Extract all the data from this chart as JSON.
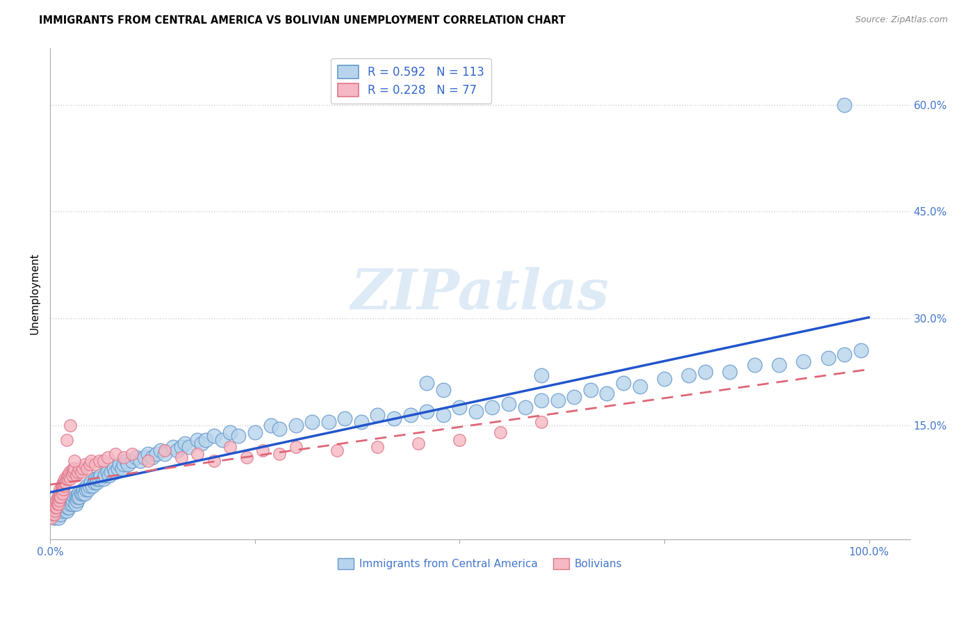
{
  "title": "IMMIGRANTS FROM CENTRAL AMERICA VS BOLIVIAN UNEMPLOYMENT CORRELATION CHART",
  "source": "Source: ZipAtlas.com",
  "ylabel": "Unemployment",
  "xlim": [
    0.0,
    1.05
  ],
  "ylim": [
    -0.01,
    0.68
  ],
  "ytick_vals": [
    0.15,
    0.3,
    0.45,
    0.6
  ],
  "ytick_labels": [
    "15.0%",
    "30.0%",
    "45.0%",
    "60.0%"
  ],
  "xtick_vals": [
    0.0,
    1.0
  ],
  "xtick_labels": [
    "0.0%",
    "100.0%"
  ],
  "blue_face": "#b8d4ec",
  "blue_edge": "#6699cc",
  "pink_face": "#f5b8c4",
  "pink_edge": "#dd7788",
  "line_blue_color": "#2255cc",
  "line_pink_color": "#dd6677",
  "grid_color": "#cccccc",
  "watermark": "ZIPatlas",
  "watermark_color": "#c8ddf0",
  "legend_label1": "Immigrants from Central America",
  "legend_label2": "Bolivians",
  "legend_r1": "R = 0.592",
  "legend_n1": "N = 113",
  "legend_r2": "R = 0.228",
  "legend_n2": "N = 77",
  "blue_x": [
    0.005,
    0.007,
    0.009,
    0.01,
    0.012,
    0.013,
    0.015,
    0.016,
    0.018,
    0.02,
    0.021,
    0.022,
    0.023,
    0.025,
    0.026,
    0.027,
    0.028,
    0.03,
    0.031,
    0.032,
    0.033,
    0.034,
    0.035,
    0.036,
    0.038,
    0.04,
    0.041,
    0.042,
    0.044,
    0.045,
    0.047,
    0.048,
    0.05,
    0.052,
    0.054,
    0.055,
    0.057,
    0.058,
    0.06,
    0.062,
    0.065,
    0.067,
    0.07,
    0.072,
    0.075,
    0.078,
    0.08,
    0.083,
    0.085,
    0.088,
    0.09,
    0.093,
    0.095,
    0.1,
    0.105,
    0.11,
    0.115,
    0.12,
    0.125,
    0.13,
    0.135,
    0.14,
    0.15,
    0.155,
    0.16,
    0.165,
    0.17,
    0.18,
    0.185,
    0.19,
    0.2,
    0.21,
    0.22,
    0.23,
    0.25,
    0.27,
    0.28,
    0.3,
    0.32,
    0.34,
    0.36,
    0.38,
    0.4,
    0.42,
    0.44,
    0.46,
    0.48,
    0.5,
    0.52,
    0.54,
    0.56,
    0.58,
    0.6,
    0.62,
    0.64,
    0.66,
    0.68,
    0.7,
    0.72,
    0.75,
    0.78,
    0.8,
    0.83,
    0.86,
    0.89,
    0.92,
    0.95,
    0.97,
    0.99,
    0.46,
    0.48,
    0.6,
    0.97
  ],
  "blue_y": [
    0.02,
    0.025,
    0.03,
    0.02,
    0.03,
    0.025,
    0.035,
    0.03,
    0.04,
    0.03,
    0.035,
    0.04,
    0.035,
    0.04,
    0.045,
    0.04,
    0.045,
    0.05,
    0.04,
    0.05,
    0.045,
    0.05,
    0.055,
    0.05,
    0.055,
    0.055,
    0.06,
    0.055,
    0.06,
    0.065,
    0.06,
    0.065,
    0.07,
    0.065,
    0.07,
    0.075,
    0.07,
    0.075,
    0.075,
    0.08,
    0.075,
    0.08,
    0.085,
    0.08,
    0.085,
    0.09,
    0.085,
    0.09,
    0.095,
    0.09,
    0.095,
    0.1,
    0.095,
    0.1,
    0.105,
    0.1,
    0.105,
    0.11,
    0.105,
    0.11,
    0.115,
    0.11,
    0.12,
    0.115,
    0.12,
    0.125,
    0.12,
    0.13,
    0.125,
    0.13,
    0.135,
    0.13,
    0.14,
    0.135,
    0.14,
    0.15,
    0.145,
    0.15,
    0.155,
    0.155,
    0.16,
    0.155,
    0.165,
    0.16,
    0.165,
    0.17,
    0.165,
    0.175,
    0.17,
    0.175,
    0.18,
    0.175,
    0.185,
    0.185,
    0.19,
    0.2,
    0.195,
    0.21,
    0.205,
    0.215,
    0.22,
    0.225,
    0.225,
    0.235,
    0.235,
    0.24,
    0.245,
    0.25,
    0.255,
    0.21,
    0.2,
    0.22,
    0.6
  ],
  "pink_x": [
    0.002,
    0.003,
    0.004,
    0.005,
    0.005,
    0.006,
    0.006,
    0.007,
    0.007,
    0.008,
    0.008,
    0.009,
    0.009,
    0.01,
    0.01,
    0.011,
    0.011,
    0.012,
    0.012,
    0.013,
    0.013,
    0.014,
    0.014,
    0.015,
    0.015,
    0.016,
    0.016,
    0.017,
    0.017,
    0.018,
    0.019,
    0.02,
    0.021,
    0.022,
    0.023,
    0.024,
    0.025,
    0.026,
    0.027,
    0.028,
    0.029,
    0.03,
    0.032,
    0.034,
    0.036,
    0.038,
    0.04,
    0.042,
    0.045,
    0.048,
    0.05,
    0.055,
    0.06,
    0.065,
    0.07,
    0.08,
    0.09,
    0.1,
    0.12,
    0.14,
    0.16,
    0.18,
    0.2,
    0.22,
    0.24,
    0.26,
    0.28,
    0.3,
    0.35,
    0.4,
    0.45,
    0.5,
    0.55,
    0.6,
    0.02,
    0.025,
    0.03
  ],
  "pink_y": [
    0.02,
    0.025,
    0.03,
    0.025,
    0.035,
    0.03,
    0.04,
    0.035,
    0.04,
    0.045,
    0.035,
    0.04,
    0.05,
    0.04,
    0.05,
    0.055,
    0.045,
    0.05,
    0.06,
    0.055,
    0.05,
    0.06,
    0.065,
    0.055,
    0.065,
    0.06,
    0.07,
    0.065,
    0.07,
    0.075,
    0.07,
    0.075,
    0.08,
    0.075,
    0.08,
    0.085,
    0.075,
    0.085,
    0.08,
    0.09,
    0.085,
    0.09,
    0.08,
    0.085,
    0.09,
    0.085,
    0.09,
    0.095,
    0.09,
    0.095,
    0.1,
    0.095,
    0.1,
    0.1,
    0.105,
    0.11,
    0.105,
    0.11,
    0.1,
    0.115,
    0.105,
    0.11,
    0.1,
    0.12,
    0.105,
    0.115,
    0.11,
    0.12,
    0.115,
    0.12,
    0.125,
    0.13,
    0.14,
    0.155,
    0.13,
    0.15,
    0.1
  ]
}
